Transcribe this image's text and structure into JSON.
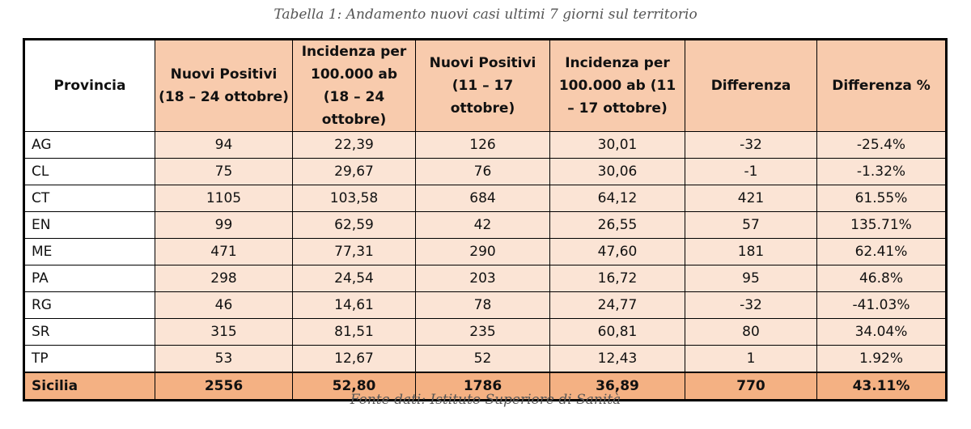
{
  "caption": "Tabella 1: Andamento nuovi casi ultimi 7 giorni sul territorio",
  "table": {
    "header": [
      "Provincia",
      "Nuovi Positivi (18 – 24 ottobre)",
      "Incidenza per 100.000 ab (18 – 24 ottobre)",
      "Nuovi Positivi (11 – 17 ottobre)",
      "Incidenza per 100.000 ab (11 – 17 ottobre)",
      "Differenza",
      "Differenza %"
    ],
    "rows": [
      [
        "AG",
        "94",
        "22,39",
        "126",
        "30,01",
        "-32",
        "-25.4%"
      ],
      [
        "CL",
        "75",
        "29,67",
        "76",
        "30,06",
        "-1",
        "-1.32%"
      ],
      [
        "CT",
        "1105",
        "103,58",
        "684",
        "64,12",
        "421",
        "61.55%"
      ],
      [
        "EN",
        "99",
        "62,59",
        "42",
        "26,55",
        "57",
        "135.71%"
      ],
      [
        "ME",
        "471",
        "77,31",
        "290",
        "47,60",
        "181",
        "62.41%"
      ],
      [
        "PA",
        "298",
        "24,54",
        "203",
        "16,72",
        "95",
        "46.8%"
      ],
      [
        "RG",
        "46",
        "14,61",
        "78",
        "24,77",
        "-32",
        "-41.03%"
      ],
      [
        "SR",
        "315",
        "81,51",
        "235",
        "60,81",
        "80",
        "34.04%"
      ],
      [
        "TP",
        "53",
        "12,67",
        "52",
        "12,43",
        "1",
        "1.92%"
      ]
    ],
    "total": [
      "Sicilia",
      "2556",
      "52,80",
      "1786",
      "36,89",
      "770",
      "43.11%"
    ]
  },
  "source": "Fonte dati: Istituto Superiore di Sanità"
}
